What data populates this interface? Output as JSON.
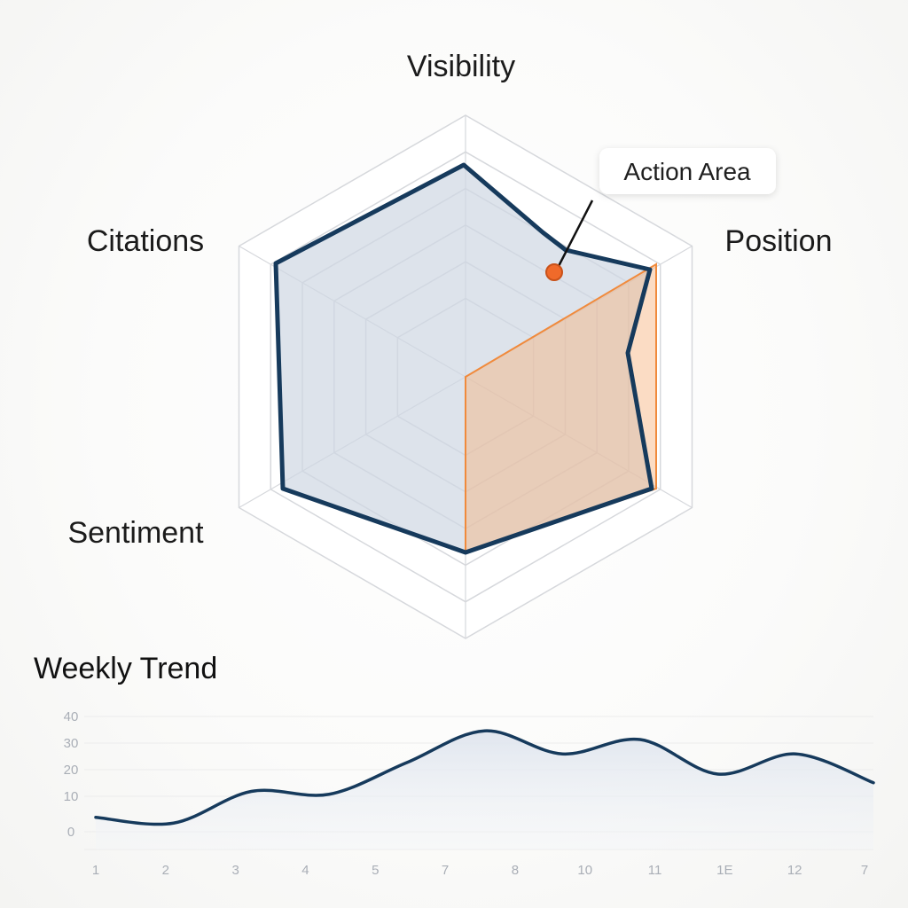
{
  "chart_data": [
    {
      "type": "radar",
      "axes": [
        "Visibility",
        "Position",
        "Sentiment",
        "Citations"
      ],
      "annotation": {
        "label": "Action Area",
        "color": "#f06a2a"
      },
      "colors": {
        "outline": "#163a5c",
        "fill": "#cfd7e3",
        "highlight": "#f7b27d",
        "highlight_edge": "#f08a3c",
        "grid": "#d6d8dc"
      }
    },
    {
      "type": "area",
      "title": "Weekly Trend",
      "x_tick_labels": [
        "1",
        "2",
        "3",
        "4",
        "5",
        "7",
        "8",
        "10",
        "11",
        "1E",
        "12",
        "7"
      ],
      "y_tick_labels": [
        "0",
        "10",
        "20",
        "30",
        "40"
      ],
      "ylim": [
        0,
        40
      ],
      "values": [
        5,
        3,
        14,
        13,
        24,
        35,
        27,
        32,
        20,
        27,
        17
      ],
      "colors": {
        "line": "#163a5c",
        "fill": "#e6ebf2",
        "grid": "#ececec"
      }
    }
  ]
}
